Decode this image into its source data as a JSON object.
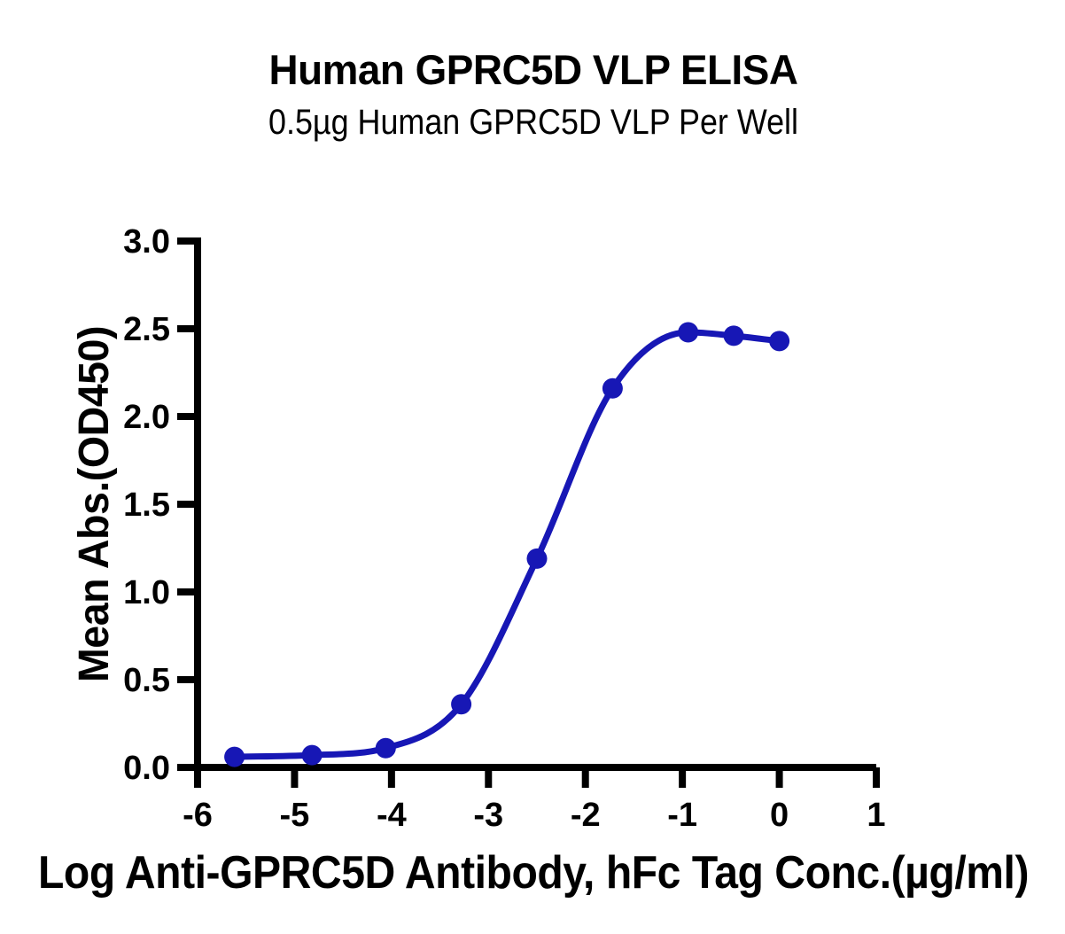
{
  "chart_data": {
    "type": "line",
    "title": "Human GPRC5D VLP ELISA",
    "subtitle": "0.5µg Human GPRC5D VLP Per Well",
    "xlabel": "Log Anti-GPRC5D Antibody, hFc Tag Conc.(µg/ml)",
    "ylabel": "Mean Abs.(OD450)",
    "xlim": [
      -6,
      1
    ],
    "ylim": [
      0,
      3
    ],
    "grid": false,
    "legend": false,
    "background_color": "#ffffff",
    "axis_color": "#000000",
    "x_tick_values": [
      -6,
      -5,
      -4,
      -3,
      -2,
      -1,
      0,
      1
    ],
    "x_tick_labels": [
      "-6",
      "-5",
      "-4",
      "-3",
      "-2",
      "-1",
      "0",
      "1"
    ],
    "y_tick_values": [
      0,
      0.5,
      1,
      1.5,
      2,
      2.5,
      3
    ],
    "y_tick_labels": [
      "0.0",
      "0.5",
      "1.0",
      "1.5",
      "2.0",
      "2.5",
      "3.0"
    ],
    "series": [
      {
        "color": "#1717b5",
        "marker": "circle",
        "x": [
          -5.62,
          -4.82,
          -4.06,
          -3.28,
          -2.5,
          -1.72,
          -0.94,
          -0.47,
          0.0
        ],
        "y": [
          0.06,
          0.07,
          0.11,
          0.36,
          1.19,
          2.16,
          2.48,
          2.46,
          2.43
        ]
      }
    ]
  }
}
